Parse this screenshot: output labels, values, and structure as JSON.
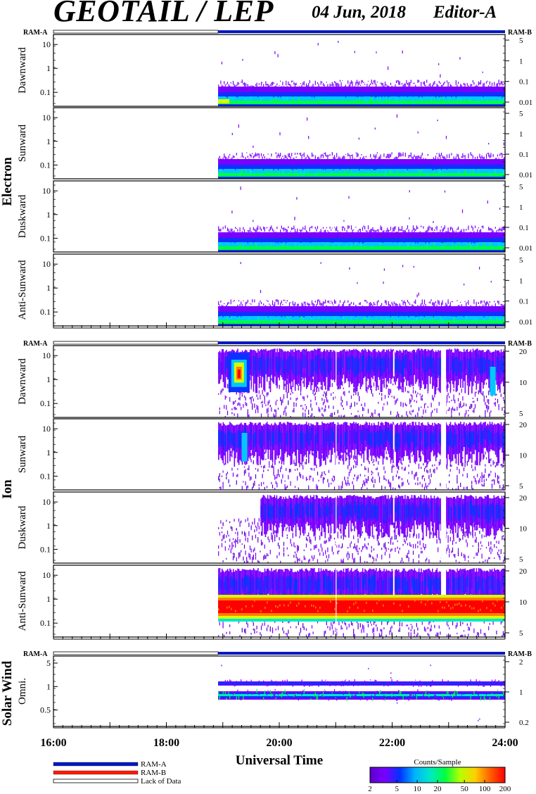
{
  "header": {
    "title": "GEOTAIL / LEP",
    "date": "04 Jun, 2018",
    "editor": "Editor-A"
  },
  "chart_data": {
    "type": "heatmap",
    "xlabel": "Universal Time",
    "xticks": [
      "16:00",
      "18:00",
      "20:00",
      "22:00",
      "24:00"
    ],
    "xrange": [
      "16:00",
      "24:00"
    ],
    "data_start": "18:55",
    "ram_labels": {
      "left": "RAM-A",
      "right": "RAM-B"
    },
    "groups": [
      {
        "name": "Electron",
        "panels": [
          {
            "name": "Dawnward",
            "left_ticks": [
              "10",
              "1",
              "0.1"
            ],
            "right_ticks": [
              "5",
              "1",
              "0.1",
              "0.01"
            ]
          },
          {
            "name": "Sunward",
            "left_ticks": [
              "10",
              "1",
              "0.1"
            ],
            "right_ticks": [
              "5",
              "1",
              "0.1",
              "0.01"
            ]
          },
          {
            "name": "Duskward",
            "left_ticks": [
              "10",
              "1",
              "0.1"
            ],
            "right_ticks": [
              "5",
              "1",
              "0.1",
              "0.01"
            ]
          },
          {
            "name": "Anti-Sunward",
            "left_ticks": [
              "10",
              "1",
              "0.1"
            ],
            "right_ticks": [
              "5",
              "1",
              "0.1",
              "0.01"
            ]
          }
        ]
      },
      {
        "name": "Ion",
        "panels": [
          {
            "name": "Dawnward",
            "left_ticks": [
              "10",
              "1",
              "0.1"
            ],
            "right_ticks": [
              "20",
              "10",
              "5"
            ]
          },
          {
            "name": "Sunward",
            "left_ticks": [
              "10",
              "1",
              "0.1"
            ],
            "right_ticks": [
              "20",
              "10",
              "5"
            ]
          },
          {
            "name": "Duskward",
            "left_ticks": [
              "10",
              "1",
              "0.1"
            ],
            "right_ticks": [
              "20",
              "10",
              "5"
            ]
          },
          {
            "name": "Anti-Sunward",
            "left_ticks": [
              "10",
              "1",
              "0.1"
            ],
            "right_ticks": [
              "20",
              "10",
              "5"
            ]
          }
        ]
      },
      {
        "name": "Solar Wind",
        "panels": [
          {
            "name": "Omni.",
            "left_ticks": [
              "5",
              "1",
              "0.5"
            ],
            "right_ticks": [
              "2",
              "1",
              "0.2"
            ]
          }
        ]
      }
    ],
    "colorbar": {
      "label": "Counts/Sample",
      "ticks": [
        "2",
        "5",
        "10",
        "20",
        "50",
        "100",
        "200"
      ],
      "colors": [
        "#5a00c8",
        "#7a00ff",
        "#0033ff",
        "#00b4ff",
        "#00e8c8",
        "#00ff40",
        "#b4ff00",
        "#ffd000",
        "#ff6000",
        "#ff0000"
      ]
    },
    "legend": [
      {
        "label": "RAM-A",
        "color": "#0018c0",
        "style": "solid"
      },
      {
        "label": "RAM-B",
        "color": "#ff1a00",
        "style": "solid"
      },
      {
        "label": "Lack of Data",
        "color": "#ffffff",
        "style": "outline"
      }
    ]
  }
}
